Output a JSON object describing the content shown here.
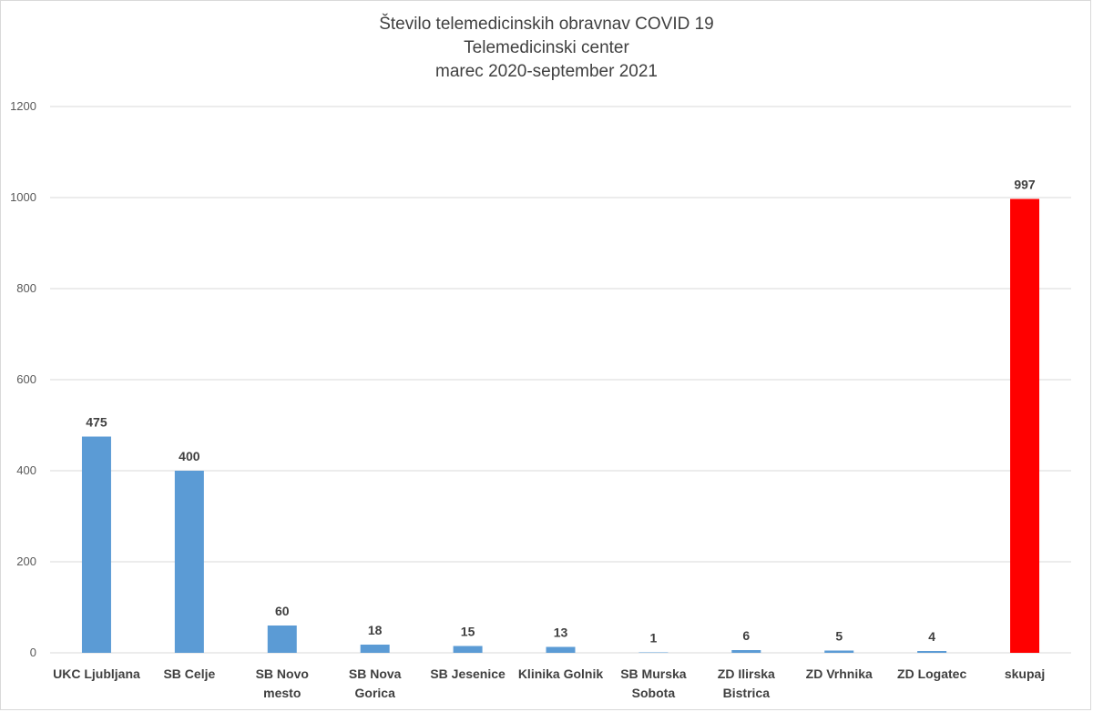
{
  "chart_data": {
    "type": "bar",
    "title": [
      "Število telemedicinskih obravnav COVID 19",
      "Telemedicinski center",
      "marec 2020-september 2021"
    ],
    "categories": [
      [
        "UKC Ljubljana"
      ],
      [
        "SB Celje"
      ],
      [
        "SB Novo",
        "mesto"
      ],
      [
        "SB Nova",
        "Gorica"
      ],
      [
        "SB Jesenice"
      ],
      [
        "Klinika Golnik"
      ],
      [
        "SB Murska",
        "Sobota"
      ],
      [
        "ZD Ilirska",
        "Bistrica"
      ],
      [
        "ZD Vrhnika"
      ],
      [
        "ZD Logatec"
      ],
      [
        "skupaj"
      ]
    ],
    "values": [
      475,
      400,
      60,
      18,
      15,
      13,
      1,
      6,
      5,
      4,
      997
    ],
    "bar_colors": [
      "#5b9bd5",
      "#5b9bd5",
      "#5b9bd5",
      "#5b9bd5",
      "#5b9bd5",
      "#5b9bd5",
      "#5b9bd5",
      "#5b9bd5",
      "#5b9bd5",
      "#5b9bd5",
      "#ff0000"
    ],
    "yticks": [
      0,
      200,
      400,
      600,
      800,
      1000,
      1200
    ],
    "ylim": [
      0,
      1200
    ],
    "grid": true,
    "xlabel": "",
    "ylabel": ""
  }
}
